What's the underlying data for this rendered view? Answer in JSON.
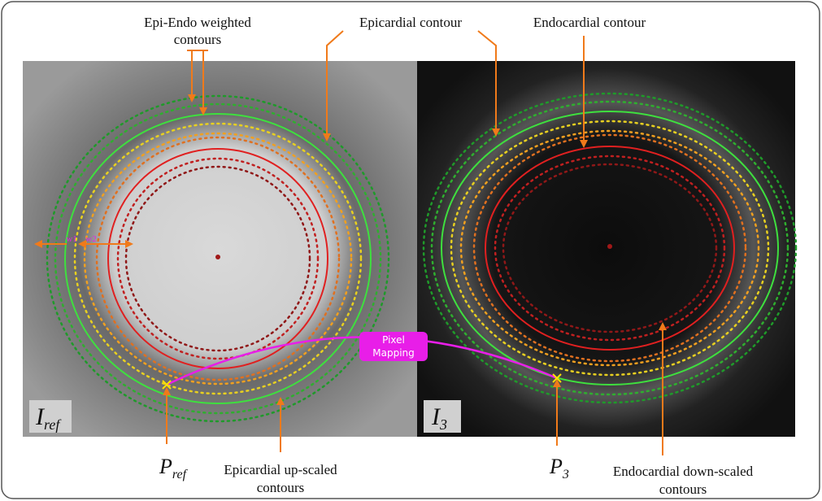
{
  "annotations": {
    "epi_endo": [
      "Epi-Endo weighted",
      "contours"
    ],
    "epicardial": "Epicardial contour",
    "endocardial": "Endocardial contour",
    "w1": "w1",
    "w2": "w2",
    "pixel_mapping": [
      "Pixel",
      "Mapping"
    ],
    "epi_upscaled": [
      "Epicardial up-scaled",
      "contours"
    ],
    "endo_downscaled": [
      "Endocardial down-scaled",
      "contours"
    ]
  },
  "images": [
    {
      "base": "I",
      "sub": "ref"
    },
    {
      "base": "I",
      "sub": "3"
    }
  ],
  "points": [
    {
      "base": "P",
      "sub": "ref"
    },
    {
      "base": "P",
      "sub": "3"
    }
  ]
}
